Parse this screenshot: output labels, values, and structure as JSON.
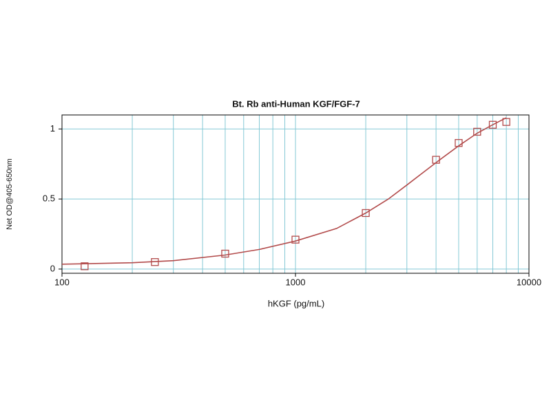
{
  "chart_data": {
    "type": "scatter",
    "title": "Bt. Rb anti-Human KGF/FGF-7",
    "xlabel": "hKGF (pg/mL)",
    "ylabel": "Net OD@405-650nm",
    "xscale": "log",
    "xlim": [
      100,
      10000
    ],
    "ylim": [
      -0.03,
      1.1
    ],
    "xticks": [
      100,
      1000,
      10000
    ],
    "xminorticks": [
      200,
      300,
      400,
      500,
      600,
      700,
      800,
      900,
      2000,
      3000,
      4000,
      5000,
      6000,
      7000,
      8000,
      9000
    ],
    "yticks": [
      0,
      0.5,
      1
    ],
    "grid": true,
    "grid_color": "#84c9d6",
    "series": [
      {
        "color": "#b24a4a",
        "marker": "square",
        "x": [
          125,
          250,
          500,
          1000,
          2000,
          4000,
          5000,
          6000,
          7000,
          8000
        ],
        "values": [
          0.02,
          0.05,
          0.11,
          0.21,
          0.4,
          0.78,
          0.9,
          0.98,
          1.03,
          1.05
        ]
      },
      {
        "color": "#b24a4a",
        "marker": "line",
        "x": [
          100,
          200,
          300,
          500,
          700,
          1000,
          1500,
          2000,
          2500,
          3000,
          4000,
          5000,
          6000,
          7000,
          8000
        ],
        "values": [
          0.035,
          0.045,
          0.06,
          0.1,
          0.14,
          0.2,
          0.29,
          0.4,
          0.5,
          0.6,
          0.76,
          0.88,
          0.97,
          1.03,
          1.08
        ]
      }
    ]
  }
}
